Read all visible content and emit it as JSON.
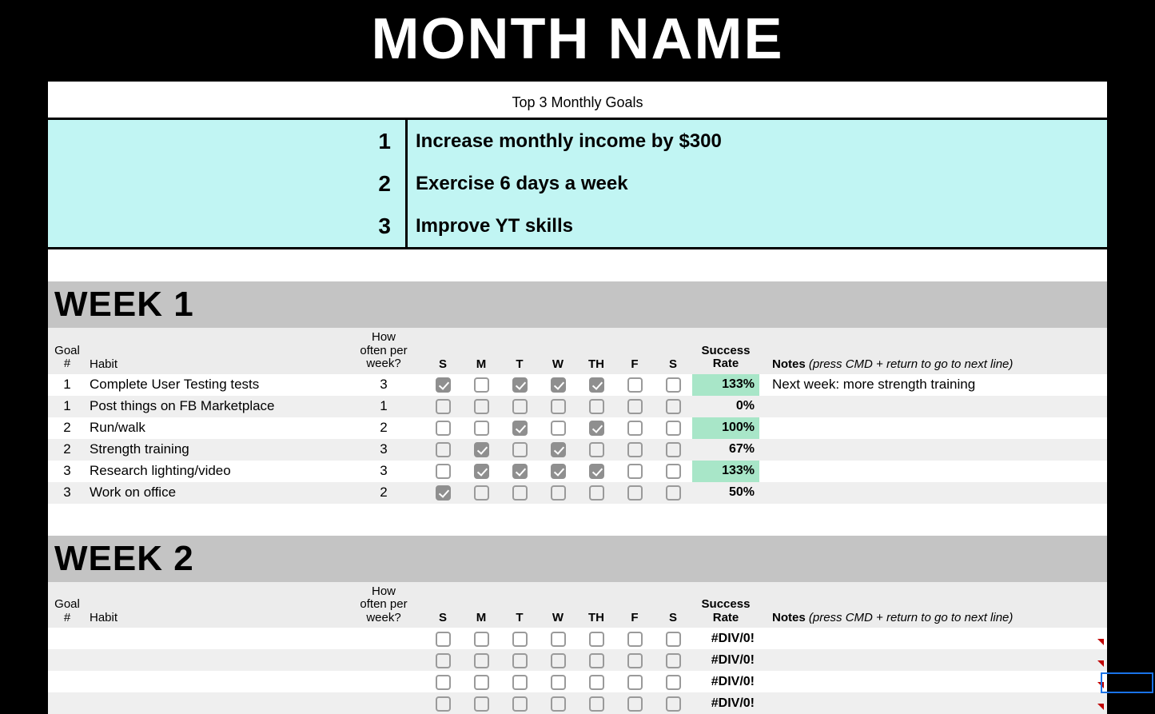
{
  "title": "MONTH NAME",
  "goals_label": "Top 3 Monthly Goals",
  "goals_bg": "#c1f5f3",
  "goals": [
    {
      "num": "1",
      "text": "Increase monthly income by $300"
    },
    {
      "num": "2",
      "text": "Exercise 6 days a week"
    },
    {
      "num": "3",
      "text": "Improve YT skills"
    }
  ],
  "columns": {
    "goal_num": "Goal #",
    "habit": "Habit",
    "freq": "How often per week?",
    "days": [
      "S",
      "M",
      "T",
      "W",
      "TH",
      "F",
      "S"
    ],
    "success": "Success Rate",
    "notes_label": "Notes",
    "notes_hint": "(press CMD + return to go to next line)"
  },
  "weeks": [
    {
      "title": "WEEK 1",
      "note": "Next week: more strength training",
      "rows": [
        {
          "goal": "1",
          "habit": "Complete User Testing tests",
          "freq": "3",
          "days": [
            1,
            0,
            1,
            1,
            1,
            0,
            0
          ],
          "rate": "133%",
          "rate_green": true
        },
        {
          "goal": "1",
          "habit": "Post things on FB Marketplace",
          "freq": "1",
          "days": [
            0,
            0,
            0,
            0,
            0,
            0,
            0
          ],
          "rate": "0%",
          "rate_green": false
        },
        {
          "goal": "2",
          "habit": "Run/walk",
          "freq": "2",
          "days": [
            0,
            0,
            1,
            0,
            1,
            0,
            0
          ],
          "rate": "100%",
          "rate_green": true
        },
        {
          "goal": "2",
          "habit": "Strength training",
          "freq": "3",
          "days": [
            0,
            1,
            0,
            1,
            0,
            0,
            0
          ],
          "rate": "67%",
          "rate_green": false
        },
        {
          "goal": "3",
          "habit": "Research lighting/video",
          "freq": "3",
          "days": [
            0,
            1,
            1,
            1,
            1,
            0,
            0
          ],
          "rate": "133%",
          "rate_green": true
        },
        {
          "goal": "3",
          "habit": "Work on office",
          "freq": "2",
          "days": [
            1,
            0,
            0,
            0,
            0,
            0,
            0
          ],
          "rate": "50%",
          "rate_green": false
        }
      ]
    },
    {
      "title": "WEEK 2",
      "note": "",
      "rows": [
        {
          "goal": "",
          "habit": "",
          "freq": "",
          "days": [
            0,
            0,
            0,
            0,
            0,
            0,
            0
          ],
          "rate": "#DIV/0!",
          "rate_green": false,
          "err": true
        },
        {
          "goal": "",
          "habit": "",
          "freq": "",
          "days": [
            0,
            0,
            0,
            0,
            0,
            0,
            0
          ],
          "rate": "#DIV/0!",
          "rate_green": false,
          "err": true
        },
        {
          "goal": "",
          "habit": "",
          "freq": "",
          "days": [
            0,
            0,
            0,
            0,
            0,
            0,
            0
          ],
          "rate": "#DIV/0!",
          "rate_green": false,
          "err": true
        },
        {
          "goal": "",
          "habit": "",
          "freq": "",
          "days": [
            0,
            0,
            0,
            0,
            0,
            0,
            0
          ],
          "rate": "#DIV/0!",
          "rate_green": false,
          "err": true
        }
      ]
    }
  ]
}
